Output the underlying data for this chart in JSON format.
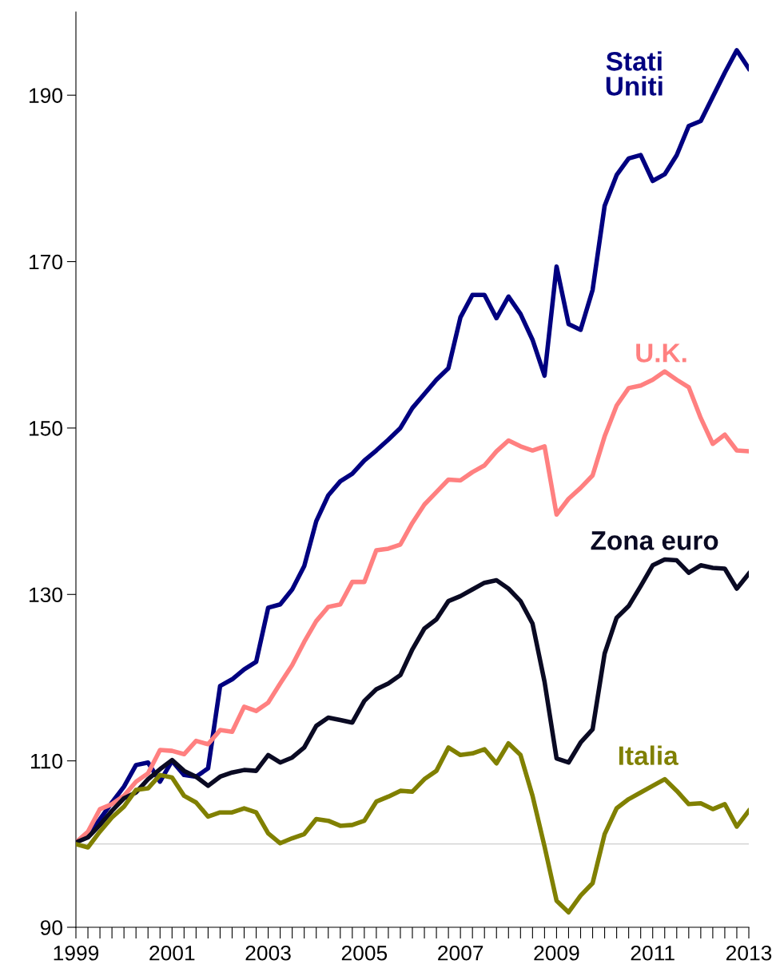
{
  "chart_data": {
    "type": "line",
    "x": [
      1999,
      1999.25,
      1999.5,
      1999.75,
      2000,
      2000.25,
      2000.5,
      2000.75,
      2001,
      2001.25,
      2001.5,
      2001.75,
      2002,
      2002.25,
      2002.5,
      2002.75,
      2003,
      2003.25,
      2003.5,
      2003.75,
      2004,
      2004.25,
      2004.5,
      2004.75,
      2005,
      2005.25,
      2005.5,
      2005.75,
      2006,
      2006.25,
      2006.5,
      2006.75,
      2007,
      2007.25,
      2007.5,
      2007.75,
      2008,
      2008.25,
      2008.5,
      2008.75,
      2009,
      2009.25,
      2009.5,
      2009.75,
      2010,
      2010.25,
      2010.5,
      2010.75,
      2011,
      2011.25,
      2011.5,
      2011.75,
      2012,
      2012.25,
      2012.5,
      2012.75,
      2013
    ],
    "series": [
      {
        "name": "Stati Uniti",
        "color": "#000080",
        "values": [
          100.2,
          101.1,
          103,
          105,
          106.9,
          109.5,
          109.8,
          107.5,
          110,
          108.3,
          108.1,
          109.1,
          119,
          119.8,
          121,
          121.9,
          128.4,
          128.8,
          130.6,
          133.4,
          138.8,
          141.9,
          143.6,
          144.5,
          146.1,
          147.3,
          148.6,
          150,
          152.4,
          154.1,
          155.8,
          157.2,
          163.3,
          166,
          166,
          163.2,
          165.8,
          163.7,
          160.6,
          156.3,
          169.4,
          162.5,
          161.8,
          166.6,
          176.7,
          180.4,
          182.4,
          182.8,
          179.7,
          180.5,
          182.8,
          186.3,
          186.9,
          189.8,
          192.7,
          195.4,
          193.2
        ]
      },
      {
        "name": "U.K.",
        "color": "#ff8080",
        "values": [
          100.2,
          101.5,
          104.2,
          104.8,
          105.8,
          107.5,
          108.5,
          111.3,
          111.2,
          110.8,
          112.4,
          112,
          113.7,
          113.5,
          116.5,
          116,
          117,
          119.3,
          121.5,
          124.3,
          126.8,
          128.5,
          128.8,
          131.5,
          131.5,
          135.3,
          135.5,
          136,
          138.6,
          140.8,
          142.3,
          143.8,
          143.7,
          144.7,
          145.5,
          147.2,
          148.5,
          147.8,
          147.3,
          147.8,
          139.6,
          141.5,
          142.8,
          144.3,
          149,
          152.7,
          154.8,
          155.1,
          155.8,
          156.8,
          155.8,
          154.9,
          151.2,
          148.1,
          149.2,
          147.3,
          147.2
        ]
      },
      {
        "name": "Zona euro",
        "color": "#0a0a23",
        "values": [
          100.2,
          100.8,
          102.3,
          104,
          105.5,
          106.2,
          107.8,
          109,
          110.1,
          108.8,
          108.1,
          107,
          108.1,
          108.6,
          108.9,
          108.8,
          110.7,
          109.8,
          110.4,
          111.6,
          114.2,
          115.2,
          114.9,
          114.6,
          117.2,
          118.6,
          119.3,
          120.3,
          123.4,
          125.9,
          127,
          129.2,
          129.8,
          130.6,
          131.4,
          131.7,
          130.7,
          129.2,
          126.5,
          119.5,
          110.3,
          109.8,
          112.2,
          113.8,
          122.9,
          127.2,
          128.6,
          131,
          133.5,
          134.2,
          134.1,
          132.6,
          133.5,
          133.2,
          133.1,
          130.7,
          132.5
        ]
      },
      {
        "name": "Italia",
        "color": "#808000",
        "values": [
          100,
          99.6,
          101.5,
          103.2,
          104.5,
          106.5,
          106.7,
          108.3,
          108,
          105.8,
          105,
          103.3,
          103.8,
          103.8,
          104.3,
          103.8,
          101.3,
          100.1,
          100.7,
          101.2,
          103,
          102.8,
          102.2,
          102.3,
          102.8,
          105.1,
          105.7,
          106.4,
          106.3,
          107.8,
          108.8,
          111.6,
          110.7,
          110.9,
          111.4,
          109.7,
          112.1,
          110.7,
          105.8,
          99.7,
          93.2,
          91.8,
          93.8,
          95.3,
          101.2,
          104.3,
          105.4,
          106.2,
          107,
          107.8,
          106.4,
          104.8,
          104.9,
          104.2,
          104.8,
          102.1,
          104
        ]
      }
    ],
    "xlim": [
      1999,
      2013
    ],
    "xticks": [
      1999,
      {
        "value": 1999.25,
        "label": null
      },
      {
        "value": 1999.5,
        "label": null
      },
      {
        "value": 1999.75,
        "label": null
      },
      {
        "value": 2000,
        "label": null
      },
      {
        "value": 2000.25,
        "label": null
      },
      {
        "value": 2000.5,
        "label": null
      },
      {
        "value": 2000.75,
        "label": null
      },
      2001,
      {
        "value": 2001.25,
        "label": null
      },
      {
        "value": 2001.5,
        "label": null
      },
      {
        "value": 2001.75,
        "label": null
      },
      {
        "value": 2002,
        "label": null
      },
      {
        "value": 2002.25,
        "label": null
      },
      {
        "value": 2002.5,
        "label": null
      },
      {
        "value": 2002.75,
        "label": null
      },
      2003,
      {
        "value": 2003.25,
        "label": null
      },
      {
        "value": 2003.5,
        "label": null
      },
      {
        "value": 2003.75,
        "label": null
      },
      {
        "value": 2004,
        "label": null
      },
      {
        "value": 2004.25,
        "label": null
      },
      {
        "value": 2004.5,
        "label": null
      },
      {
        "value": 2004.75,
        "label": null
      },
      2005,
      {
        "value": 2005.25,
        "label": null
      },
      {
        "value": 2005.5,
        "label": null
      },
      {
        "value": 2005.75,
        "label": null
      },
      {
        "value": 2006,
        "label": null
      },
      {
        "value": 2006.25,
        "label": null
      },
      {
        "value": 2006.5,
        "label": null
      },
      {
        "value": 2006.75,
        "label": null
      },
      2007,
      {
        "value": 2007.25,
        "label": null
      },
      {
        "value": 2007.5,
        "label": null
      },
      {
        "value": 2007.75,
        "label": null
      },
      {
        "value": 2008,
        "label": null
      },
      {
        "value": 2008.25,
        "label": null
      },
      {
        "value": 2008.5,
        "label": null
      },
      {
        "value": 2008.75,
        "label": null
      },
      2009,
      {
        "value": 2009.25,
        "label": null
      },
      {
        "value": 2009.5,
        "label": null
      },
      {
        "value": 2009.75,
        "label": null
      },
      {
        "value": 2010,
        "label": null
      },
      {
        "value": 2010.25,
        "label": null
      },
      {
        "value": 2010.5,
        "label": null
      },
      {
        "value": 2010.75,
        "label": null
      },
      2011,
      {
        "value": 2011.25,
        "label": null
      },
      {
        "value": 2011.5,
        "label": null
      },
      {
        "value": 2011.75,
        "label": null
      },
      {
        "value": 2012,
        "label": null
      },
      {
        "value": 2012.25,
        "label": null
      },
      {
        "value": 2012.5,
        "label": null
      },
      {
        "value": 2012.75,
        "label": null
      },
      2013
    ],
    "ylim": [
      90,
      200
    ],
    "yticks": [
      90,
      110,
      130,
      150,
      170,
      190
    ],
    "ref_lines": [
      {
        "axis": "y",
        "value": 100,
        "color": "#c0c0c0"
      }
    ],
    "grid": false,
    "legend": false,
    "marker": "none",
    "line_style": "solid"
  }
}
